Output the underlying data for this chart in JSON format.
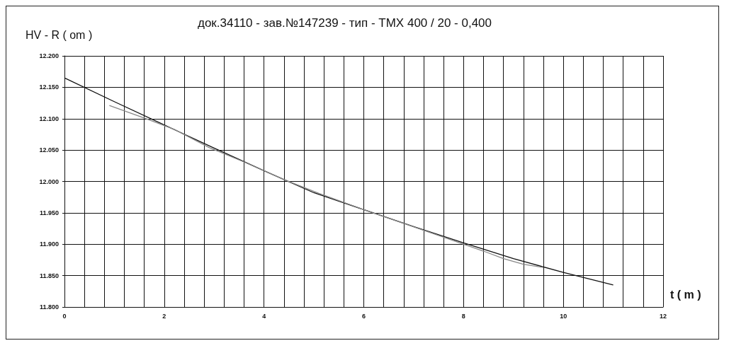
{
  "chart_data": {
    "type": "line",
    "title": "док.34110 - зав.№147239 - тип - ТМХ 400 / 20 - 0,400",
    "xlabel": "t ( m )",
    "ylabel": "HV - R ( om )",
    "series": [
      {
        "color": "#111111",
        "x": [
          0,
          1,
          2,
          3,
          4,
          5,
          6,
          7,
          8,
          9,
          10,
          11
        ],
        "values": [
          12.165,
          12.127,
          12.09,
          12.053,
          12.017,
          11.982,
          11.955,
          11.928,
          11.902,
          11.877,
          11.855,
          11.835
        ]
      },
      {
        "color": "#888888",
        "x": [
          0.9,
          1.6,
          2.2,
          2.9,
          3.6,
          4.4,
          5.1,
          6,
          6.8,
          7.6,
          8.4,
          8.8,
          9.2,
          9.6
        ],
        "values": [
          12.121,
          12.101,
          12.083,
          12.054,
          12.031,
          12.003,
          11.981,
          11.955,
          11.933,
          11.911,
          11.889,
          11.877,
          11.868,
          11.863
        ]
      }
    ],
    "xlim": [
      0,
      12
    ],
    "xticks": [
      0,
      {
        "value": 0.4,
        "label": null
      },
      {
        "value": 0.8,
        "label": null
      },
      {
        "value": 1.2,
        "label": null
      },
      {
        "value": 1.6,
        "label": null
      },
      2,
      {
        "value": 2.4,
        "label": null
      },
      {
        "value": 2.8,
        "label": null
      },
      {
        "value": 3.2,
        "label": null
      },
      {
        "value": 3.6,
        "label": null
      },
      4,
      {
        "value": 4.4,
        "label": null
      },
      {
        "value": 4.8,
        "label": null
      },
      {
        "value": 5.2,
        "label": null
      },
      {
        "value": 5.6,
        "label": null
      },
      6,
      {
        "value": 6.4,
        "label": null
      },
      {
        "value": 6.8,
        "label": null
      },
      {
        "value": 7.2,
        "label": null
      },
      {
        "value": 7.6,
        "label": null
      },
      8,
      {
        "value": 8.4,
        "label": null
      },
      {
        "value": 8.8,
        "label": null
      },
      {
        "value": 9.2,
        "label": null
      },
      {
        "value": 9.6,
        "label": null
      },
      10,
      {
        "value": 10.4,
        "label": null
      },
      {
        "value": 10.8,
        "label": null
      },
      {
        "value": 11.2,
        "label": null
      },
      {
        "value": 11.6,
        "label": null
      },
      12
    ],
    "ylim": [
      11.8,
      12.2
    ],
    "yticks": [
      {
        "value": 11.8,
        "label": "11.800"
      },
      {
        "value": 11.85,
        "label": "11.850"
      },
      {
        "value": 11.9,
        "label": "11.900"
      },
      {
        "value": 11.95,
        "label": "11.950"
      },
      {
        "value": 12,
        "label": "12.000"
      },
      {
        "value": 12.05,
        "label": "12.050"
      },
      {
        "value": 12.1,
        "label": "12.100"
      },
      {
        "value": 12.15,
        "label": "12.150"
      },
      {
        "value": 12.2,
        "label": "12.200"
      }
    ],
    "grid": true,
    "marker": "none",
    "line_style": "solid"
  }
}
